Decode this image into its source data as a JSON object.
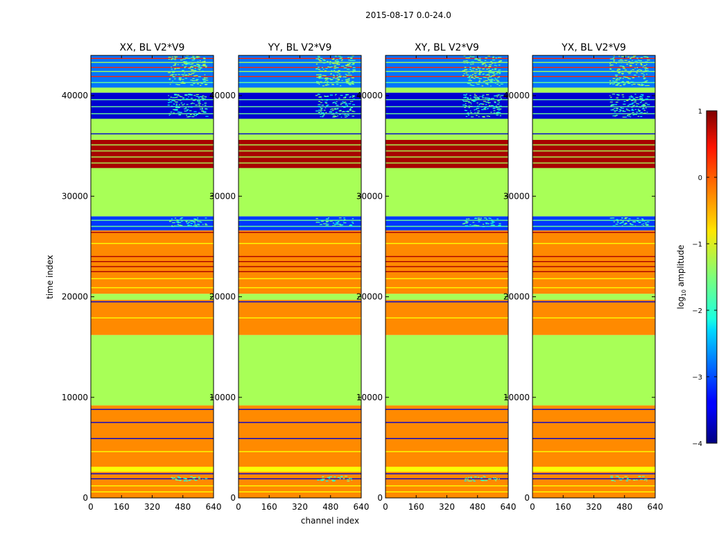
{
  "chart_data": {
    "type": "heatmap",
    "suptitle": "2015-08-17 0.0-24.0",
    "xlabel": "channel index",
    "ylabel": "time index",
    "xlim": [
      0,
      640
    ],
    "ylim": [
      0,
      44000
    ],
    "xticks": [
      0,
      160,
      320,
      480,
      640
    ],
    "yticks": [
      0,
      10000,
      20000,
      30000,
      40000
    ],
    "colorbar": {
      "label_pre": "log",
      "label_sub": "10",
      "label_post": " amplitude",
      "range": [
        -4,
        1
      ],
      "ticks": [
        1,
        0,
        -1,
        -2,
        -3,
        -4
      ],
      "tick_labels": [
        "1",
        "0",
        "−1",
        "−2",
        "−3",
        "−4"
      ],
      "colormap": "jet"
    },
    "panels": [
      {
        "title": "XX, BL V2*V9"
      },
      {
        "title": "YY, BL V2*V9"
      },
      {
        "title": "XY, BL V2*V9"
      },
      {
        "title": "YX, BL V2*V9"
      }
    ],
    "bands": [
      {
        "t0": 0,
        "t1": 2600,
        "value": -0.3
      },
      {
        "t0": 2600,
        "t1": 3100,
        "value": -0.9
      },
      {
        "t0": 3100,
        "t1": 9200,
        "value": -0.3
      },
      {
        "t0": 9200,
        "t1": 16200,
        "value": -1.3
      },
      {
        "t0": 16200,
        "t1": 19700,
        "value": -0.3
      },
      {
        "t0": 19700,
        "t1": 20300,
        "value": -1.3
      },
      {
        "t0": 20300,
        "t1": 26600,
        "value": -0.3
      },
      {
        "t0": 26600,
        "t1": 28000,
        "value": -3.1
      },
      {
        "t0": 28000,
        "t1": 32800,
        "value": -1.3
      },
      {
        "t0": 32800,
        "t1": 35600,
        "value": 0.8
      },
      {
        "t0": 35600,
        "t1": 37700,
        "value": -1.3
      },
      {
        "t0": 37700,
        "t1": 40300,
        "value": -3.6
      },
      {
        "t0": 40300,
        "t1": 40800,
        "value": -1.3
      },
      {
        "t0": 40800,
        "t1": 44000,
        "value": -2.8
      }
    ],
    "lines": [
      {
        "t": 600,
        "value": -0.9
      },
      {
        "t": 1200,
        "value": -0.9
      },
      {
        "t": 1900,
        "value": -3.6
      },
      {
        "t": 2400,
        "value": -3.6
      },
      {
        "t": 4600,
        "value": -0.9
      },
      {
        "t": 5900,
        "value": -3.6
      },
      {
        "t": 7500,
        "value": -3.6
      },
      {
        "t": 8800,
        "value": -3.6
      },
      {
        "t": 17900,
        "value": -0.9
      },
      {
        "t": 19500,
        "value": -3.6
      },
      {
        "t": 20900,
        "value": -0.9
      },
      {
        "t": 21800,
        "value": -0.9
      },
      {
        "t": 22500,
        "value": 0.8
      },
      {
        "t": 23000,
        "value": 0.8
      },
      {
        "t": 23500,
        "value": 0.8
      },
      {
        "t": 24000,
        "value": 0.8
      },
      {
        "t": 25300,
        "value": -0.9
      },
      {
        "t": 26400,
        "value": 0.8
      },
      {
        "t": 27000,
        "value": -1.6
      },
      {
        "t": 27600,
        "value": -1.6
      },
      {
        "t": 33300,
        "value": -1.3
      },
      {
        "t": 33900,
        "value": -1.3
      },
      {
        "t": 34500,
        "value": -1.3
      },
      {
        "t": 35100,
        "value": -1.3
      },
      {
        "t": 36200,
        "value": -3.6
      },
      {
        "t": 38200,
        "value": -1.6
      },
      {
        "t": 38900,
        "value": -1.6
      },
      {
        "t": 39600,
        "value": -1.6
      },
      {
        "t": 41300,
        "value": -1.6
      },
      {
        "t": 41900,
        "value": 0.2
      },
      {
        "t": 42400,
        "value": -1.3
      },
      {
        "t": 42800,
        "value": 0.2
      },
      {
        "t": 43300,
        "value": -1.3
      },
      {
        "t": 43700,
        "value": 0.2
      }
    ],
    "speckle_regions": [
      {
        "t0": 1700,
        "t1": 2200,
        "c0": 400,
        "c1": 600,
        "value": -1.8
      },
      {
        "t0": 27000,
        "t1": 27900,
        "c0": 400,
        "c1": 600,
        "value": -1.8
      },
      {
        "t0": 37900,
        "t1": 40200,
        "c0": 400,
        "c1": 600,
        "value": -1.8
      },
      {
        "t0": 41000,
        "t1": 44000,
        "c0": 400,
        "c1": 600,
        "value": -1.5
      }
    ]
  }
}
